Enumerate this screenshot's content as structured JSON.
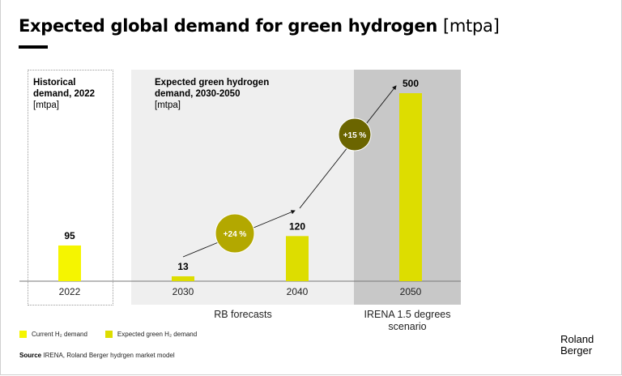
{
  "title": {
    "main": "Expected global demand for green hydrogen",
    "unit": "[mtpa]"
  },
  "panels": {
    "historical": {
      "line1": "Historical",
      "line2": "demand, 2022",
      "unit": "[mtpa]"
    },
    "expected": {
      "line1": "Expected green hydrogen",
      "line2": "demand, 2030-2050",
      "unit": "[mtpa]"
    }
  },
  "group_labels": {
    "rb": "RB forecasts",
    "irena_line1": "IRENA 1.5 degrees",
    "irena_line2": "scenario"
  },
  "legend": {
    "current": "Current H₂ demand",
    "expected": "Expected green H₂ demand"
  },
  "source": {
    "label": "Source",
    "text": "IRENA, Roland Berger hydrgen market model"
  },
  "logo": {
    "line1": "Roland",
    "line2": "Berger"
  },
  "colors": {
    "current": "#f5f500",
    "expected": "#dddd00",
    "growth_24": "#b3a800",
    "growth_15": "#6b6500",
    "panel_light": "#efefef",
    "panel_dark": "#c8c8c8"
  },
  "chart_data": {
    "type": "bar",
    "title": "Expected global demand for green hydrogen [mtpa]",
    "categories": [
      "2022",
      "2030",
      "2040",
      "2050"
    ],
    "values": [
      95,
      13,
      120,
      500
    ],
    "value_labels": [
      "95",
      "13",
      "120",
      "500"
    ],
    "series_type": [
      "current",
      "expected",
      "expected",
      "expected"
    ],
    "ylim": [
      0,
      500
    ],
    "xlabel": "",
    "ylabel": "mtpa",
    "annotations": [
      {
        "label": "+24 %",
        "from": "2030",
        "to": "2040",
        "type": "cagr"
      },
      {
        "label": "+15 %",
        "from": "2040",
        "to": "2050",
        "type": "cagr"
      }
    ],
    "groups": [
      {
        "name": "Historical demand, 2022",
        "categories": [
          "2022"
        ]
      },
      {
        "name": "RB forecasts",
        "categories": [
          "2030",
          "2040"
        ]
      },
      {
        "name": "IRENA 1.5 degrees scenario",
        "categories": [
          "2050"
        ]
      }
    ],
    "legend": [
      "Current H₂ demand",
      "Expected green H₂ demand"
    ],
    "legend_position": "bottom-left",
    "grid": false
  }
}
